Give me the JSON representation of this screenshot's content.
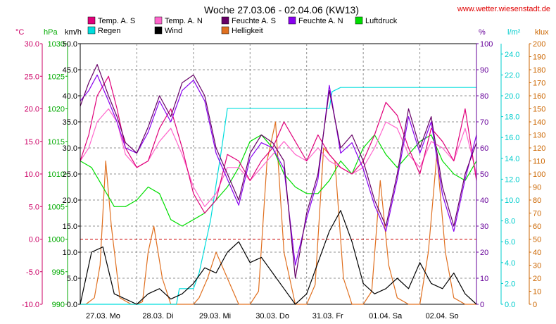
{
  "chart_data": {
    "type": "line",
    "title": "Woche 27.03.06 - 02.04.06 (KW13)",
    "source_label": "www.wetter.wiesenstadt.de",
    "x_labels": [
      "27.03. Mo",
      "28.03. Di",
      "29.03. Mi",
      "30.03. Do",
      "31.03. Fr",
      "01.04. Sa",
      "02.04. So"
    ],
    "x_range_days": [
      0,
      7
    ],
    "axes_left": [
      {
        "unit": "°C",
        "color": "#cc0066",
        "min": -10,
        "max": 30,
        "ticks": [
          "-10.0",
          "-5.0",
          "0.0",
          "5.0",
          "10.0",
          "15.0",
          "20.0",
          "25.0",
          "30.0"
        ]
      },
      {
        "unit": "hPa",
        "color": "#00aa00",
        "min": 990,
        "max": 1030,
        "ticks": [
          "990",
          "995",
          "1000",
          "1005",
          "1010",
          "1015",
          "1020",
          "1025",
          "1030"
        ]
      },
      {
        "unit": "km/h",
        "color": "#000000",
        "min": 0,
        "max": 50,
        "ticks": [
          "0.0",
          "5.0",
          "10.0",
          "15.0",
          "20.0",
          "25.0",
          "30.0",
          "35.0",
          "40.0",
          "45.0",
          "50.0"
        ]
      }
    ],
    "axes_right": [
      {
        "unit": "%",
        "color": "#660099",
        "min": 0,
        "max": 100,
        "ticks": [
          "0",
          "10",
          "20",
          "30",
          "40",
          "50",
          "60",
          "70",
          "80",
          "90",
          "100"
        ]
      },
      {
        "unit": "l/m²",
        "color": "#00cccc",
        "min": 0,
        "max": 25,
        "ticks": [
          "0.0",
          "2.0",
          "4.0",
          "6.0",
          "8.0",
          "10.0",
          "12.0",
          "14.0",
          "16.0",
          "18.0",
          "20.0",
          "22.0",
          "24.0"
        ]
      },
      {
        "unit": "klux",
        "color": "#cc6600",
        "min": 0,
        "max": 200,
        "ticks": [
          "0",
          "10",
          "20",
          "30",
          "40",
          "50",
          "60",
          "70",
          "80",
          "90",
          "100",
          "110",
          "120",
          "130",
          "140",
          "150",
          "160",
          "170",
          "180",
          "190",
          "200"
        ]
      }
    ],
    "legend": [
      {
        "name": "Temp. A. S",
        "color": "#e0007a"
      },
      {
        "name": "Temp. A. N",
        "color": "#ff66cc"
      },
      {
        "name": "Feuchte A. S",
        "color": "#660066"
      },
      {
        "name": "Feuchte A. N",
        "color": "#8800ee"
      },
      {
        "name": "Luftdruck",
        "color": "#00dd00"
      },
      {
        "name": "Regen",
        "color": "#00dddd"
      },
      {
        "name": "Wind",
        "color": "#000000"
      },
      {
        "name": "Helligkeit",
        "color": "#e07020"
      }
    ],
    "grid": true,
    "zero_line_color": "#cc0000",
    "series": [
      {
        "name": "Temp. A. S",
        "axis": "°C",
        "color": "#e0007a",
        "x": [
          0,
          0.15,
          0.3,
          0.5,
          0.65,
          0.8,
          1.0,
          1.2,
          1.4,
          1.6,
          1.8,
          2.0,
          2.2,
          2.4,
          2.6,
          2.8,
          3.0,
          3.2,
          3.4,
          3.6,
          3.8,
          4.0,
          4.2,
          4.4,
          4.6,
          4.8,
          5.0,
          5.2,
          5.4,
          5.6,
          5.8,
          6.0,
          6.2,
          6.4,
          6.6,
          6.8,
          7.0
        ],
        "y": [
          12,
          16,
          22,
          25,
          20,
          14,
          11,
          12,
          17,
          20,
          14,
          7,
          4,
          6,
          13,
          12,
          9,
          12,
          14,
          18,
          15,
          12,
          16,
          13,
          11,
          10,
          12,
          16,
          21,
          19,
          14,
          10,
          17,
          15,
          12,
          20,
          9
        ]
      },
      {
        "name": "Temp. A. N",
        "axis": "°C",
        "color": "#ff66cc",
        "x": [
          0,
          0.15,
          0.3,
          0.5,
          0.65,
          0.8,
          1.0,
          1.2,
          1.4,
          1.6,
          1.8,
          2.0,
          2.2,
          2.4,
          2.6,
          2.8,
          3.0,
          3.2,
          3.4,
          3.6,
          3.8,
          4.0,
          4.2,
          4.4,
          4.6,
          4.8,
          5.0,
          5.2,
          5.4,
          5.6,
          5.8,
          6.0,
          6.2,
          6.4,
          6.6,
          6.8,
          7.0
        ],
        "y": [
          12,
          14,
          18,
          20,
          18,
          13,
          11,
          12,
          15,
          17,
          13,
          8,
          5,
          7,
          11,
          11,
          9,
          11,
          13,
          15,
          13,
          12,
          14,
          12,
          11,
          10,
          11,
          14,
          18,
          17,
          13,
          11,
          15,
          14,
          12,
          17,
          10
        ]
      },
      {
        "name": "Feuchte A. S",
        "axis": "%",
        "color": "#660066",
        "x": [
          0,
          0.15,
          0.3,
          0.5,
          0.65,
          0.8,
          1.0,
          1.2,
          1.4,
          1.6,
          1.8,
          2.0,
          2.2,
          2.4,
          2.6,
          2.8,
          3.0,
          3.2,
          3.4,
          3.6,
          3.8,
          4.0,
          4.2,
          4.4,
          4.6,
          4.8,
          5.0,
          5.2,
          5.4,
          5.6,
          5.8,
          6.0,
          6.2,
          6.4,
          6.6,
          6.8,
          7.0
        ],
        "y": [
          76,
          85,
          92,
          80,
          72,
          62,
          58,
          68,
          80,
          72,
          85,
          88,
          80,
          60,
          50,
          40,
          58,
          65,
          62,
          55,
          10,
          35,
          50,
          82,
          60,
          65,
          55,
          40,
          30,
          50,
          75,
          60,
          72,
          45,
          30,
          50,
          62
        ]
      },
      {
        "name": "Feuchte A. N",
        "axis": "%",
        "color": "#8800ee",
        "x": [
          0,
          0.15,
          0.3,
          0.5,
          0.65,
          0.8,
          1.0,
          1.2,
          1.4,
          1.6,
          1.8,
          2.0,
          2.2,
          2.4,
          2.6,
          2.8,
          3.0,
          3.2,
          3.4,
          3.6,
          3.8,
          4.0,
          4.2,
          4.4,
          4.6,
          4.8,
          5.0,
          5.2,
          5.4,
          5.6,
          5.8,
          6.0,
          6.2,
          6.4,
          6.6,
          6.8,
          7.0
        ],
        "y": [
          78,
          82,
          88,
          78,
          70,
          60,
          58,
          66,
          78,
          70,
          82,
          86,
          78,
          58,
          48,
          38,
          56,
          62,
          60,
          52,
          15,
          33,
          48,
          84,
          58,
          62,
          52,
          38,
          28,
          48,
          72,
          58,
          70,
          42,
          28,
          48,
          65
        ]
      },
      {
        "name": "Luftdruck",
        "axis": "hPa",
        "color": "#00dd00",
        "x": [
          0,
          0.2,
          0.4,
          0.6,
          0.8,
          1.0,
          1.2,
          1.4,
          1.6,
          1.8,
          2.0,
          2.2,
          2.4,
          2.6,
          2.8,
          3.0,
          3.2,
          3.4,
          3.6,
          3.8,
          4.0,
          4.2,
          4.4,
          4.6,
          4.8,
          5.0,
          5.2,
          5.4,
          5.6,
          5.8,
          6.0,
          6.2,
          6.4,
          6.6,
          6.8,
          7.0
        ],
        "y": [
          1012,
          1011,
          1008,
          1005,
          1005,
          1006,
          1008,
          1007,
          1003,
          1002,
          1003,
          1004,
          1006,
          1008,
          1011,
          1015,
          1016,
          1014,
          1010,
          1008,
          1007,
          1007,
          1009,
          1012,
          1010,
          1014,
          1016,
          1013,
          1011,
          1013,
          1015,
          1016,
          1012,
          1010,
          1009,
          1012
        ]
      },
      {
        "name": "Regen",
        "axis": "l/m²",
        "color": "#00dddd",
        "x": [
          0,
          1.7,
          1.75,
          2.0,
          2.1,
          2.3,
          2.5,
          2.6,
          3.0,
          3.5,
          4.0,
          4.4,
          4.45,
          4.6,
          5.5,
          6.0,
          6.5,
          7.0
        ],
        "y": [
          0,
          0,
          1.5,
          1.5,
          3.0,
          8.0,
          15.0,
          18.8,
          18.8,
          18.8,
          18.8,
          18.8,
          20.4,
          20.8,
          20.8,
          20.8,
          20.8,
          20.8
        ]
      },
      {
        "name": "Wind",
        "axis": "km/h",
        "color": "#000000",
        "x": [
          0,
          0.2,
          0.4,
          0.6,
          0.8,
          1.0,
          1.2,
          1.4,
          1.6,
          1.8,
          2.0,
          2.2,
          2.4,
          2.6,
          2.8,
          3.0,
          3.2,
          3.4,
          3.6,
          3.8,
          4.0,
          4.2,
          4.4,
          4.6,
          4.8,
          5.0,
          5.2,
          5.4,
          5.6,
          5.8,
          6.0,
          6.2,
          6.4,
          6.6,
          6.8,
          7.0
        ],
        "y": [
          0,
          10,
          11,
          2,
          1,
          0,
          2,
          3,
          1,
          2,
          4,
          7,
          6,
          10,
          12,
          8,
          9,
          6,
          3,
          0,
          2,
          8,
          14,
          18,
          12,
          4,
          2,
          3,
          5,
          3,
          8,
          4,
          3,
          6,
          2,
          0
        ]
      },
      {
        "name": "Helligkeit",
        "axis": "klux",
        "color": "#e07020",
        "x": [
          0,
          0.1,
          0.25,
          0.35,
          0.45,
          0.55,
          0.7,
          0.9,
          1.0,
          1.1,
          1.2,
          1.3,
          1.45,
          1.6,
          1.8,
          2.0,
          2.1,
          2.25,
          2.4,
          2.6,
          2.8,
          3.0,
          3.15,
          3.3,
          3.45,
          3.6,
          3.8,
          4.0,
          4.15,
          4.3,
          4.5,
          4.65,
          4.8,
          5.0,
          5.15,
          5.3,
          5.45,
          5.6,
          5.8,
          6.0,
          6.15,
          6.3,
          6.45,
          6.6,
          6.8,
          7.0
        ],
        "y": [
          0,
          0,
          5,
          30,
          110,
          60,
          5,
          0,
          0,
          2,
          40,
          60,
          20,
          0,
          0,
          0,
          5,
          20,
          40,
          20,
          0,
          0,
          10,
          110,
          140,
          40,
          0,
          0,
          15,
          120,
          110,
          20,
          0,
          0,
          10,
          95,
          30,
          5,
          0,
          0,
          40,
          115,
          40,
          5,
          0,
          0
        ]
      }
    ]
  }
}
